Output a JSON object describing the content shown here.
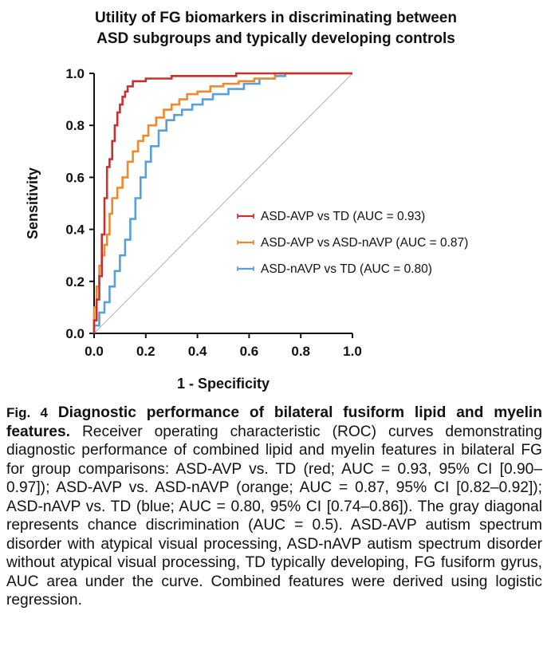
{
  "figure": {
    "title_line1": "Utility of FG biomarkers in discriminating between",
    "title_line2": "ASD subgroups and typically developing controls",
    "caption_label": "Fig. 4",
    "caption_title": "Diagnostic performance of bilateral fusiform lipid and myelin features.",
    "caption_body": "Receiver operating characteristic (ROC) curves demonstrating diagnostic performance of combined lipid and myelin features in bilateral FG for group comparisons: ASD-AVP vs. TD (red; AUC = 0.93, 95% CI [0.90–0.97]); ASD-AVP vs. ASD-nAVP (orange; AUC = 0.87, 95% CI [0.82–0.92]); ASD-nAVP vs. TD (blue; AUC = 0.80, 95% CI [0.74–0.86]). The gray diagonal represents chance discrimination (AUC = 0.5). ASD-AVP autism spectrum disorder with atypical visual processing, ASD-nAVP autism spectrum disorder without atypical visual processing, TD typically developing, FG fusiform gyrus, AUC area under the curve. Combined features were derived using logistic regression."
  },
  "chart_data": {
    "type": "line",
    "xlabel": "1 - Specificity",
    "ylabel": "Sensitivity",
    "xlim": [
      0,
      1
    ],
    "ylim": [
      0,
      1
    ],
    "xticks": [
      "0.0",
      "0.2",
      "0.4",
      "0.6",
      "0.8",
      "1.0"
    ],
    "yticks": [
      "0.0",
      "0.2",
      "0.4",
      "0.6",
      "0.8",
      "1.0"
    ],
    "grid": false,
    "legend_position": "center-right",
    "reference_line": {
      "x": [
        0,
        1
      ],
      "y": [
        0,
        1
      ],
      "color": "#b0b0b0"
    },
    "series": [
      {
        "name": "ASD-AVP vs TD (AUC = 0.93)",
        "color": "#c8322d",
        "x": [
          0,
          0,
          0.01,
          0.01,
          0.02,
          0.02,
          0.03,
          0.03,
          0.04,
          0.04,
          0.05,
          0.05,
          0.06,
          0.06,
          0.07,
          0.07,
          0.08,
          0.08,
          0.09,
          0.09,
          0.1,
          0.1,
          0.11,
          0.11,
          0.12,
          0.12,
          0.13,
          0.13,
          0.15,
          0.15,
          0.2,
          0.2,
          0.3,
          0.3,
          0.55,
          0.55,
          1.0
        ],
        "y": [
          0,
          0.05,
          0.05,
          0.13,
          0.13,
          0.22,
          0.22,
          0.38,
          0.38,
          0.52,
          0.52,
          0.64,
          0.64,
          0.67,
          0.67,
          0.74,
          0.74,
          0.8,
          0.8,
          0.85,
          0.85,
          0.88,
          0.88,
          0.91,
          0.91,
          0.93,
          0.93,
          0.95,
          0.95,
          0.97,
          0.97,
          0.98,
          0.98,
          0.99,
          0.99,
          1.0,
          1.0
        ]
      },
      {
        "name": "ASD-AVP vs ASD-nAVP (AUC = 0.87)",
        "color": "#ee8a2e",
        "x": [
          0,
          0,
          0.01,
          0.01,
          0.02,
          0.02,
          0.03,
          0.03,
          0.04,
          0.04,
          0.05,
          0.05,
          0.06,
          0.06,
          0.07,
          0.07,
          0.09,
          0.09,
          0.11,
          0.11,
          0.13,
          0.13,
          0.15,
          0.15,
          0.17,
          0.17,
          0.19,
          0.19,
          0.21,
          0.21,
          0.24,
          0.24,
          0.27,
          0.27,
          0.3,
          0.3,
          0.33,
          0.33,
          0.36,
          0.36,
          0.4,
          0.4,
          0.45,
          0.45,
          0.5,
          0.5,
          0.56,
          0.56,
          0.62,
          0.62,
          0.7,
          0.7,
          1.0
        ],
        "y": [
          0,
          0.1,
          0.1,
          0.18,
          0.18,
          0.26,
          0.26,
          0.3,
          0.3,
          0.34,
          0.34,
          0.38,
          0.38,
          0.46,
          0.46,
          0.52,
          0.52,
          0.56,
          0.56,
          0.6,
          0.6,
          0.66,
          0.66,
          0.7,
          0.7,
          0.74,
          0.74,
          0.76,
          0.76,
          0.8,
          0.8,
          0.83,
          0.83,
          0.86,
          0.86,
          0.88,
          0.88,
          0.9,
          0.9,
          0.92,
          0.92,
          0.93,
          0.93,
          0.95,
          0.95,
          0.96,
          0.96,
          0.97,
          0.97,
          0.98,
          0.98,
          1.0,
          1.0
        ]
      },
      {
        "name": "ASD-nAVP vs TD (AUC = 0.80)",
        "color": "#5aa0d8",
        "x": [
          0,
          0,
          0.02,
          0.02,
          0.04,
          0.04,
          0.06,
          0.06,
          0.08,
          0.08,
          0.1,
          0.1,
          0.12,
          0.12,
          0.14,
          0.14,
          0.16,
          0.16,
          0.18,
          0.18,
          0.2,
          0.2,
          0.22,
          0.22,
          0.25,
          0.25,
          0.28,
          0.28,
          0.31,
          0.31,
          0.34,
          0.34,
          0.38,
          0.38,
          0.42,
          0.42,
          0.46,
          0.46,
          0.52,
          0.52,
          0.58,
          0.58,
          0.64,
          0.64,
          0.7,
          0.7,
          0.74,
          0.74,
          1.0
        ],
        "y": [
          0,
          0.03,
          0.03,
          0.08,
          0.08,
          0.12,
          0.12,
          0.18,
          0.18,
          0.24,
          0.24,
          0.3,
          0.3,
          0.36,
          0.36,
          0.44,
          0.44,
          0.52,
          0.52,
          0.6,
          0.6,
          0.66,
          0.66,
          0.72,
          0.72,
          0.78,
          0.78,
          0.82,
          0.82,
          0.84,
          0.84,
          0.86,
          0.86,
          0.88,
          0.88,
          0.9,
          0.9,
          0.92,
          0.92,
          0.94,
          0.94,
          0.96,
          0.96,
          0.98,
          0.98,
          0.99,
          0.99,
          1.0,
          1.0
        ]
      }
    ]
  }
}
